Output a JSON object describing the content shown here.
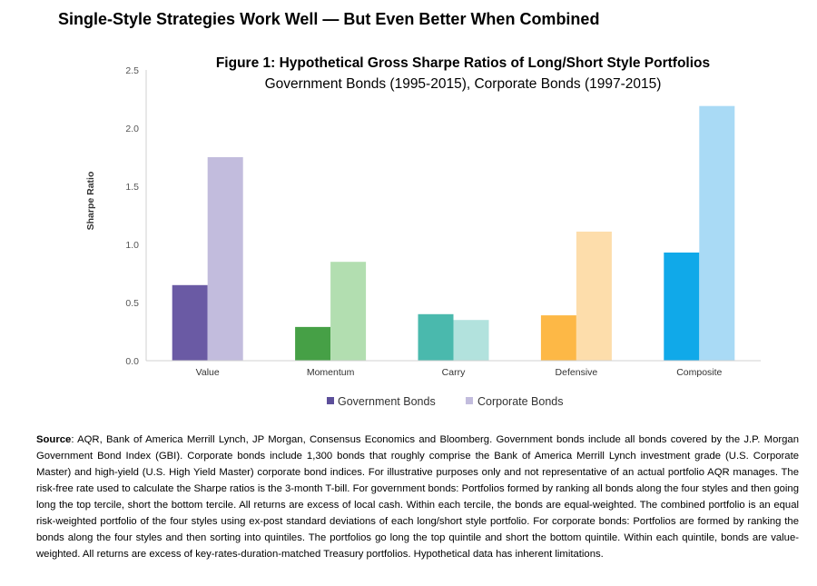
{
  "heading": "Single-Style Strategies Work Well — But Even Better When Combined",
  "chart_data": {
    "type": "bar",
    "title": "Figure 1: Hypothetical Gross Sharpe Ratios of Long/Short Style Portfolios",
    "subtitle": "Government Bonds (1995-2015), Corporate Bonds (1997-2015)",
    "ylabel": "Sharpe Ratio",
    "xlabel": "",
    "ylim": [
      0,
      2.5
    ],
    "yticks": [
      "0.0",
      "0.5",
      "1.0",
      "1.5",
      "2.0",
      "2.5"
    ],
    "grid": false,
    "legend_position": "bottom",
    "categories": [
      "Value",
      "Momentum",
      "Carry",
      "Defensive",
      "Composite"
    ],
    "series": [
      {
        "name": "Government Bonds",
        "values": [
          0.65,
          0.29,
          0.4,
          0.39,
          0.93
        ]
      },
      {
        "name": "Corporate Bonds",
        "values": [
          1.75,
          0.85,
          0.35,
          1.11,
          2.19
        ]
      }
    ],
    "colors": {
      "government": [
        "#6a5aa4",
        "#46a046",
        "#4ab9ad",
        "#fdb846",
        "#10a9e9"
      ],
      "corporate": [
        "#c2bcdd",
        "#b2deb0",
        "#b2e2dd",
        "#fdddab",
        "#a9daf5"
      ],
      "legend_government": "#5c4f9a",
      "legend_corporate": "#c2bcdd"
    }
  },
  "source": {
    "label": "Source",
    "text": ": AQR, Bank of America Merrill Lynch, JP Morgan, Consensus Economics and Bloomberg. Government bonds include all bonds covered by the J.P. Morgan Government Bond Index (GBI). Corporate bonds include 1,300 bonds that roughly comprise the Bank of America Merrill Lynch investment grade (U.S. Corporate Master) and high-yield (U.S. High Yield Master) corporate bond indices. For illustrative purposes only and not representative of an actual portfolio AQR manages. The risk-free rate used to calculate the Sharpe ratios is the 3-month T-bill. For government bonds: Portfolios formed by ranking all bonds along the four styles and then going long the top tercile, short the bottom tercile. All returns are excess of local cash. Within each tercile, the bonds are equal-weighted. The combined portfolio is an equal risk-weighted portfolio of the four styles using ex-post standard deviations of each long/short style portfolio. For corporate bonds: Portfolios are formed by ranking the bonds along the four styles and then sorting into quintiles. The portfolios go long the top quintile and short the bottom quintile. Within each quintile, bonds are value-weighted. All returns are excess of key-rates-duration-matched Treasury portfolios. Hypothetical data has inherent limitations."
  }
}
